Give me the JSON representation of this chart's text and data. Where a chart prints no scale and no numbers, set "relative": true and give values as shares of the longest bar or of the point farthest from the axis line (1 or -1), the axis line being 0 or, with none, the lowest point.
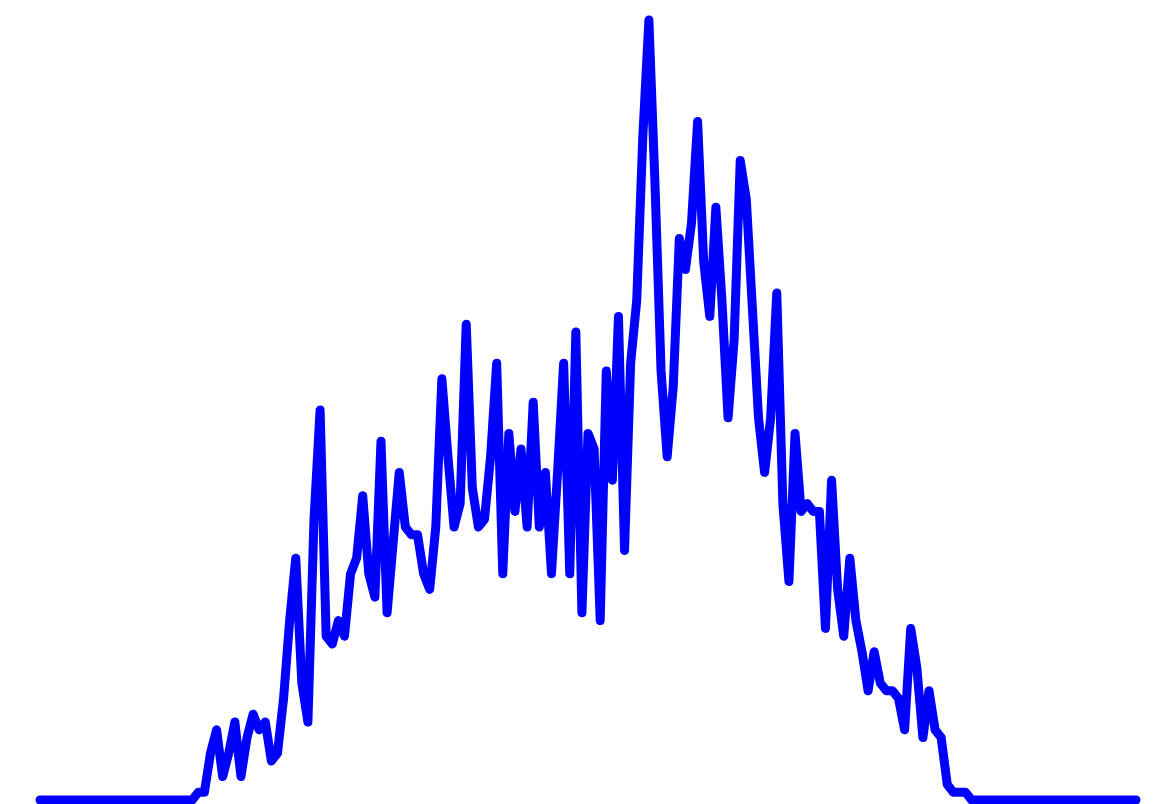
{
  "chart_data": {
    "type": "line",
    "relative": true,
    "line_style": "solid",
    "categories": [
      null,
      null,
      null,
      null,
      null,
      null,
      null,
      null,
      null,
      null,
      null,
      null,
      null,
      null,
      null,
      null,
      null,
      null,
      null,
      null,
      null,
      null,
      null,
      null,
      null,
      null,
      null,
      null,
      null,
      null,
      null,
      null,
      null,
      null,
      null,
      null,
      null,
      null,
      null,
      null,
      null,
      null,
      null,
      null,
      null,
      null,
      null,
      null,
      null,
      null,
      null,
      null,
      null,
      null,
      null,
      null,
      null,
      null,
      null,
      null,
      null,
      null,
      null,
      null,
      null,
      null,
      null,
      null,
      null,
      null,
      null,
      null,
      null,
      null,
      null,
      null,
      null,
      null,
      null,
      null,
      null,
      null,
      null,
      null,
      null,
      null,
      null,
      null,
      null,
      null,
      null,
      null,
      null,
      null,
      null,
      null,
      null,
      null,
      null,
      null,
      null,
      null,
      null,
      null,
      null,
      null,
      null,
      null,
      null,
      null,
      null,
      null,
      null,
      null,
      null,
      null,
      null,
      null,
      null,
      null,
      null,
      null,
      null,
      null,
      null,
      null,
      null,
      null,
      null,
      null,
      null,
      null,
      null,
      null,
      null,
      null,
      null,
      null,
      null,
      null,
      null,
      null,
      null,
      null,
      null,
      null,
      null,
      null,
      null,
      null,
      null,
      null,
      null,
      null,
      null,
      null,
      null,
      null,
      null,
      null,
      null,
      null,
      null,
      null,
      null,
      null,
      null,
      null,
      null,
      null,
      null,
      null,
      null,
      null,
      null,
      null,
      null,
      null,
      null,
      null,
      null
    ],
    "series": [
      {
        "color": "#0000ff",
        "values": [
          0,
          0,
          0,
          0,
          0,
          0,
          0,
          0,
          0,
          0,
          0,
          0,
          0,
          0,
          0,
          0,
          0,
          0,
          0,
          0,
          0,
          0,
          0,
          0,
          0,
          0,
          0.01,
          0.01,
          0.06,
          0.09,
          0.03,
          0.06,
          0.1,
          0.03,
          0.08,
          0.11,
          0.09,
          0.1,
          0.05,
          0.06,
          0.13,
          0.23,
          0.31,
          0.15,
          0.1,
          0.36,
          0.5,
          0.21,
          0.2,
          0.23,
          0.21,
          0.29,
          0.31,
          0.39,
          0.29,
          0.26,
          0.46,
          0.24,
          0.33,
          0.42,
          0.35,
          0.34,
          0.34,
          0.29,
          0.27,
          0.35,
          0.54,
          0.44,
          0.35,
          0.38,
          0.61,
          0.4,
          0.35,
          0.36,
          0.44,
          0.56,
          0.29,
          0.47,
          0.37,
          0.45,
          0.35,
          0.51,
          0.35,
          0.42,
          0.29,
          0.42,
          0.56,
          0.29,
          0.6,
          0.24,
          0.47,
          0.45,
          0.23,
          0.55,
          0.41,
          0.62,
          0.32,
          0.56,
          0.64,
          0.85,
          1,
          0.79,
          0.55,
          0.44,
          0.53,
          0.72,
          0.68,
          0.74,
          0.87,
          0.69,
          0.62,
          0.76,
          0.64,
          0.49,
          0.59,
          0.82,
          0.77,
          0.63,
          0.49,
          0.42,
          0.49,
          0.65,
          0.38,
          0.28,
          0.47,
          0.37,
          0.38,
          0.37,
          0.37,
          0.22,
          0.41,
          0.27,
          0.21,
          0.31,
          0.23,
          0.19,
          0.14,
          0.19,
          0.15,
          0.14,
          0.14,
          0.13,
          0.09,
          0.22,
          0.17,
          0.08,
          0.14,
          0.09,
          0.08,
          0.02,
          0.01,
          0.01,
          0.01,
          0,
          0,
          0,
          0,
          0,
          0,
          0,
          0,
          0,
          0,
          0,
          0,
          0,
          0,
          0,
          0,
          0,
          0,
          0,
          0,
          0,
          0,
          0,
          0,
          0,
          0,
          0,
          0
        ]
      }
    ]
  }
}
